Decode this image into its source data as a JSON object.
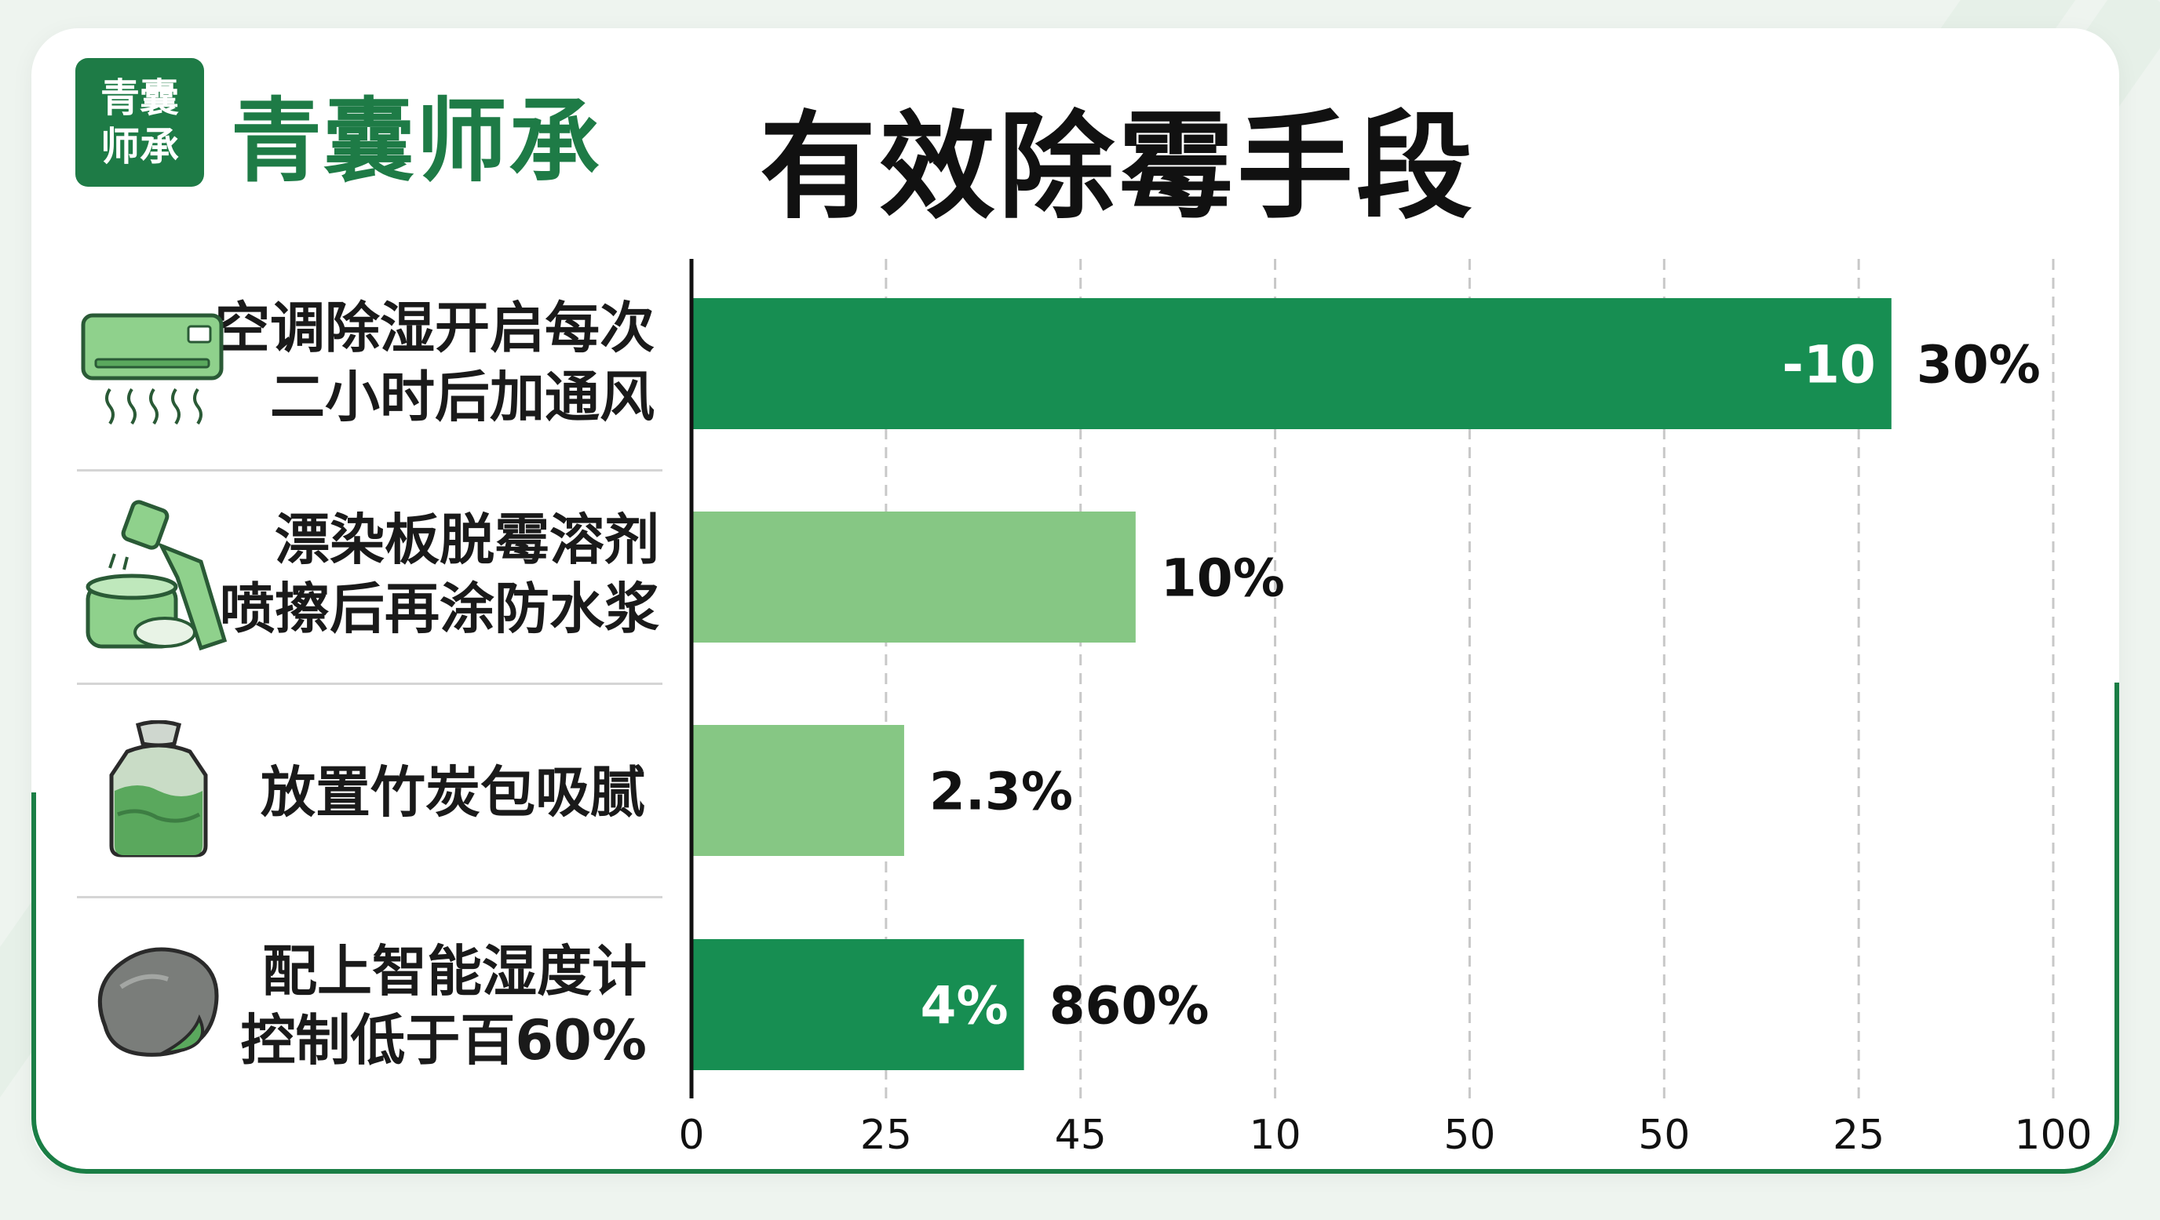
{
  "brand": {
    "logo_line1": "青囊",
    "logo_line2": "师承",
    "name": "青囊师承"
  },
  "title": "有效除霉手段",
  "colors": {
    "dark_green": "#178e52",
    "light_green": "#86c784",
    "brand_green": "#1e7b46"
  },
  "rows": [
    {
      "icon": "air-conditioner-icon",
      "line1": "空调除湿开启每次",
      "line2": "二小时后加通风"
    },
    {
      "icon": "spray-bottle-bucket-icon",
      "line1": "漂染板脱霉溶剂",
      "line2": "喷擦后再涂防水浆"
    },
    {
      "icon": "charcoal-bag-icon",
      "line1": "放置竹炭包吸腻",
      "line2": ""
    },
    {
      "icon": "humidity-meter-stone-icon",
      "line1": "配上智能湿度计",
      "line2": "控制低于百60%"
    }
  ],
  "chart_data": {
    "type": "bar",
    "orientation": "horizontal",
    "x_tick_labels": [
      "0",
      "25",
      "45",
      "10",
      "50",
      "50",
      "25",
      "100"
    ],
    "grid": "vertical dashed",
    "bars": [
      {
        "value": 88,
        "color": "#178e52",
        "inner_label": "-10",
        "outer_label": "30%"
      },
      {
        "value": 32.5,
        "color": "#86c784",
        "inner_label": "",
        "outer_label": "10%"
      },
      {
        "value": 15.5,
        "color": "#86c784",
        "inner_label": "",
        "outer_label": "2.3%"
      },
      {
        "value": 24.3,
        "color": "#178e52",
        "inner_label": "4%",
        "outer_label": "860%"
      }
    ],
    "xlim": [
      0,
      100
    ]
  }
}
